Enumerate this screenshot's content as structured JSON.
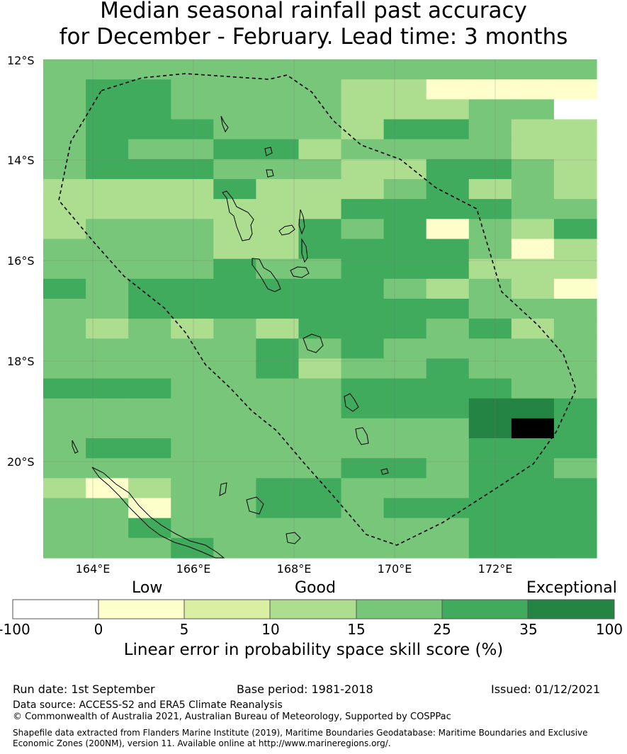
{
  "title": {
    "line1": "Median seasonal rainfall past accuracy",
    "line2": "for December - February. Lead time: 3 months"
  },
  "map": {
    "lat_labels": [
      "12°S",
      "14°S",
      "16°S",
      "18°S",
      "20°S"
    ],
    "lon_labels": [
      "164°E",
      "166°E",
      "168°E",
      "170°E",
      "172°E"
    ],
    "grid_rows": [
      "4444444444444",
      "4554444331111",
      "4554444333440",
      "4555444355433",
      "4544553444433",
      "4555444335543",
      "3333533345343",
      "3333333555544",
      "3444335451435",
      "4444335555413",
      "4444544555333",
      "5455555543431",
      "4455555555444",
      "4343435554534",
      "4444454544444",
      "4444453445444",
      "5554444555544",
      "4444444555665",
      "4444444444675",
      "4554444444555",
      "4444444554554",
      "3134455444555",
      "4414455455555",
      "4454444444555",
      "4445444444555"
    ],
    "colors": [
      "#ffffff",
      "#ffffcc",
      "#d9f0a3",
      "#addd8e",
      "#78c679",
      "#41ab5d",
      "#238443"
    ]
  },
  "legend": {
    "categories": [
      "Low",
      "Good",
      "Exceptional"
    ],
    "ticks": [
      "-100",
      "0",
      "5",
      "10",
      "15",
      "25",
      "35",
      "100"
    ],
    "label": "Linear error in probability space skill score (%)"
  },
  "footer": {
    "run_date": "Run date: 1st September",
    "base_period": "Base period: 1981-2018",
    "issued": "Issued: 01/12/2021",
    "data_source": "Data source: ACCESS-S2 and ERA5 Climate Reanalysis",
    "copyright": "© Commonwealth of Australia 2021, Australian Bureau of Meteorology, Supported by COSPPac",
    "shapefile": "Shapefile data extracted from Flanders Marine Institute (2019), Maritime Boundaries Geodatabase: Maritime Boundaries and Exclusive Economic Zones (200NM), version 11. Available online at http://www.marineregions.org/."
  }
}
